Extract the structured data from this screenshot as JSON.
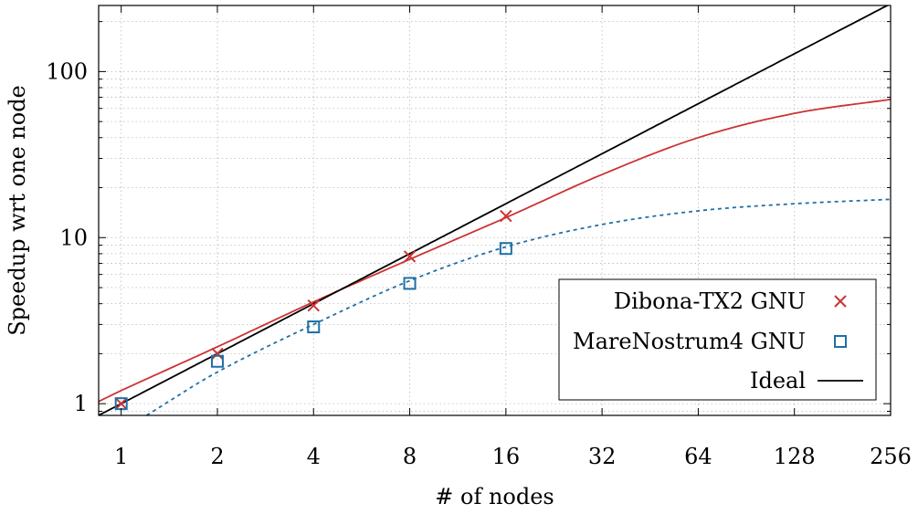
{
  "chart_data": {
    "type": "line",
    "scale": "log-log",
    "xlabel": "# of nodes",
    "ylabel": "Speedup wrt one node",
    "xlim": [
      0.85,
      256
    ],
    "ylim": [
      0.85,
      250
    ],
    "x_ticks": [
      1,
      2,
      4,
      8,
      16,
      32,
      64,
      128,
      256
    ],
    "x_tick_labels": [
      "1",
      "2",
      "4",
      "8",
      "16",
      "32",
      "64",
      "128",
      "256"
    ],
    "y_ticks": [
      1,
      10,
      100
    ],
    "y_tick_labels": [
      "1",
      "10",
      "100"
    ],
    "grid": true,
    "legend_position": "bottom-right",
    "series": [
      {
        "name": "Dibona-TX2 GNU",
        "color": "#cc3333",
        "marker": "x",
        "line_style": "solid",
        "points": [
          [
            1,
            1.0
          ],
          [
            2,
            2.0
          ],
          [
            4,
            3.9
          ],
          [
            8,
            7.7
          ],
          [
            16,
            13.5
          ]
        ],
        "fit_curve": [
          [
            0.85,
            1.03
          ],
          [
            1,
            1.2
          ],
          [
            2,
            2.2
          ],
          [
            4,
            4.1
          ],
          [
            8,
            7.4
          ],
          [
            16,
            13.2
          ],
          [
            32,
            24
          ],
          [
            64,
            40
          ],
          [
            128,
            56
          ],
          [
            256,
            68
          ]
        ]
      },
      {
        "name": "MareNostrum4 GNU",
        "color": "#1f6fa6",
        "marker": "square",
        "line_style": "dashed",
        "points": [
          [
            1,
            1.0
          ],
          [
            2,
            1.8
          ],
          [
            4,
            2.9
          ],
          [
            8,
            5.3
          ],
          [
            16,
            8.6
          ]
        ],
        "fit_curve": [
          [
            1.2,
            0.85
          ],
          [
            2,
            1.55
          ],
          [
            4,
            3.0
          ],
          [
            8,
            5.5
          ],
          [
            16,
            8.8
          ],
          [
            32,
            12
          ],
          [
            64,
            14.5
          ],
          [
            128,
            16
          ],
          [
            256,
            17
          ]
        ]
      },
      {
        "name": "Ideal",
        "color": "#000000",
        "marker": "none",
        "line_style": "solid",
        "points": [],
        "fit_curve": [
          [
            0.85,
            0.85
          ],
          [
            256,
            256
          ]
        ]
      }
    ]
  }
}
